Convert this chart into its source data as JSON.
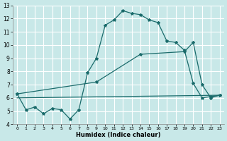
{
  "xlabel": "Humidex (Indice chaleur)",
  "bg_color": "#c8e8e8",
  "grid_color": "#ffffff",
  "line_color": "#1a6b6b",
  "xlim": [
    -0.5,
    23.5
  ],
  "ylim": [
    4,
    13
  ],
  "yticks": [
    4,
    5,
    6,
    7,
    8,
    9,
    10,
    11,
    12,
    13
  ],
  "xticks": [
    0,
    1,
    2,
    3,
    4,
    5,
    6,
    7,
    8,
    9,
    10,
    11,
    12,
    13,
    14,
    15,
    16,
    17,
    18,
    19,
    20,
    21,
    22,
    23
  ],
  "line1_x": [
    0,
    1,
    2,
    3,
    4,
    5,
    6,
    7,
    8,
    9,
    10,
    11,
    12,
    13,
    14,
    15,
    16,
    17,
    18,
    19,
    20,
    21,
    22,
    23
  ],
  "line1_y": [
    6.3,
    5.1,
    5.3,
    4.8,
    5.2,
    5.1,
    4.4,
    5.1,
    7.9,
    9.0,
    11.5,
    11.9,
    12.6,
    12.4,
    12.3,
    11.9,
    11.7,
    10.3,
    10.2,
    9.6,
    7.1,
    6.0,
    6.1,
    6.2
  ],
  "line2_x": [
    0,
    9,
    14,
    19,
    20,
    21,
    22,
    23
  ],
  "line2_y": [
    6.3,
    7.2,
    9.3,
    9.5,
    10.2,
    7.0,
    6.0,
    6.2
  ],
  "line3_x": [
    0,
    23
  ],
  "line3_y": [
    6.0,
    6.2
  ]
}
